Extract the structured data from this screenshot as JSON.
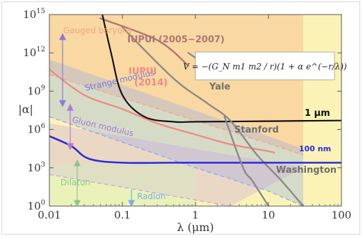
{
  "chart_data": {
    "type": "line",
    "xlabel": "λ (μm)",
    "ylabel": "|α|",
    "xscale": "log",
    "yscale": "log",
    "xlim": [
      0.01,
      100
    ],
    "ylim": [
      1,
      1000000000000000.0
    ],
    "grid": false,
    "x_ticks": [
      "0.01",
      "0.1",
      "1",
      "10",
      "100"
    ],
    "y_ticks": [
      {
        "base": "10",
        "exp": "0"
      },
      {
        "base": "10",
        "exp": "3"
      },
      {
        "base": "10",
        "exp": "6"
      },
      {
        "base": "10",
        "exp": "9"
      },
      {
        "base": "10",
        "exp": "12"
      },
      {
        "base": "10",
        "exp": "15"
      }
    ],
    "formula": "V = −(G_N m1 m2 / r)(1 + α e^(−r/λ))",
    "excluded_region_color": "#fbf3b5",
    "regions": [
      {
        "label": "Gauged baryons",
        "color": "#f7a07a",
        "lower": [
          [
            0.01,
            20000000000.0
          ],
          [
            0.1,
            300000000.0
          ],
          [
            1,
            5000000.0
          ],
          [
            10,
            80000.0
          ],
          [
            30,
            10000.0
          ]
        ],
        "upper": [
          [
            0.01,
            1000000000000000.0
          ],
          [
            30,
            1000000000000000.0
          ]
        ]
      },
      {
        "label": "Strange modulus",
        "color": "#8aa8f0",
        "lower": [
          [
            0.01,
            10000000.0
          ],
          [
            0.1,
            100000.0
          ],
          [
            1,
            1000.0
          ],
          [
            10,
            15
          ],
          [
            30,
            1
          ]
        ],
        "upper": [
          [
            0.01,
            300000000000.0
          ],
          [
            0.1,
            3000000000.0
          ],
          [
            1,
            30000000.0
          ],
          [
            10,
            300000.0
          ],
          [
            30,
            30000.0
          ]
        ]
      },
      {
        "label": "Gluon modulus",
        "color": "#c7a0e6",
        "lower": [
          [
            0.01,
            300.0
          ],
          [
            0.1,
            30
          ],
          [
            1,
            3
          ],
          [
            3,
            1
          ]
        ],
        "upper": [
          [
            0.01,
            3000000.0
          ],
          [
            0.1,
            300000.0
          ],
          [
            1,
            30000.0
          ],
          [
            10,
            3000.0
          ],
          [
            30,
            1000.0
          ]
        ]
      },
      {
        "label": "Dilaton",
        "color": "#c6eec4",
        "lower": [
          [
            0.01,
            1
          ],
          [
            1,
            1
          ]
        ],
        "upper": [
          [
            0.01,
            2000.0
          ],
          [
            1,
            2000.0
          ]
        ]
      }
    ],
    "annotations": [
      "Gauged baryons",
      "Strange modulus",
      "Gluon modulus",
      "Dilaton",
      "Radion"
    ],
    "series": [
      {
        "name": "IUPUI (2005–2007)",
        "color": "#b07575",
        "points": [
          [
            0.05,
            500000000000000.0
          ],
          [
            0.3,
            10000000000000.0
          ],
          [
            0.8,
            100000000000.0
          ]
        ]
      },
      {
        "name": "IUPUI (2014)",
        "color": "#f08a84",
        "points": [
          [
            0.01,
            50000000000.0
          ],
          [
            0.03,
            500000000.0
          ],
          [
            0.1,
            40000000.0
          ],
          [
            0.3,
            3000000.0
          ],
          [
            1,
            400000.0
          ],
          [
            3,
            70000.0
          ],
          [
            10,
            20000.0
          ],
          [
            12,
            15000.0
          ]
        ]
      },
      {
        "name": "1 μm",
        "color": "#111111",
        "points": [
          [
            0.05,
            5000000000000000.0
          ],
          [
            0.07,
            1000000000000.0
          ],
          [
            0.1,
            500000000.0
          ],
          [
            0.2,
            10000000.0
          ],
          [
            0.5,
            4000000.0
          ],
          [
            1,
            4000000.0
          ],
          [
            10,
            4500000.0
          ],
          [
            100,
            5000000.0
          ]
        ]
      },
      {
        "name": "Yale",
        "color": "#8a8a8a",
        "points": [
          [
            0.8,
            1000000000000.0
          ],
          [
            2.5,
            10000000000.0
          ]
        ]
      },
      {
        "name": "Stanford",
        "color": "#8a8a8a",
        "points": [
          [
            0.1,
            100000000000000.0
          ],
          [
            0.5,
            10000000000.0
          ],
          [
            1.5,
            100000000.0
          ],
          [
            3,
            5000000.0
          ],
          [
            7,
            10000.0
          ],
          [
            15,
            100.0
          ],
          [
            30,
            1
          ]
        ]
      },
      {
        "name": "100 nm",
        "color": "#2a2ad8",
        "points": [
          [
            0.01,
            300000.0
          ],
          [
            0.02,
            50000.0
          ],
          [
            0.035,
            5000.0
          ],
          [
            0.1,
            2500.0
          ],
          [
            0.5,
            2500.0
          ],
          [
            10,
            2500.0
          ],
          [
            100,
            2500.0
          ]
        ]
      },
      {
        "name": "Washington",
        "color": "#8a8a8a",
        "points": [
          [
            2.5,
            10000000.0
          ],
          [
            4.5,
            1000.0
          ],
          [
            6,
            100.0
          ],
          [
            10,
            1
          ]
        ]
      }
    ],
    "series_labels": [
      {
        "name": "IUPUI (2005–2007)",
        "text": "IUPUI (2005−2007)",
        "color": "#b07575"
      },
      {
        "name": "IUPUI (2014)",
        "text": "IUPUI",
        "line2": "(2014)",
        "color": "#f08a84"
      },
      {
        "name": "Yale",
        "text": "Yale",
        "color": "#6f6f6f"
      },
      {
        "name": "Stanford",
        "text": "Stanford",
        "color": "#6f6f6f"
      },
      {
        "name": "Washington",
        "text": "Washington",
        "color": "#6f6f6f"
      },
      {
        "name": "1 μm",
        "text": "1 μm",
        "color": "#111111"
      },
      {
        "name": "100 nm",
        "text": "100 nm",
        "color": "#2a2ad8"
      }
    ]
  }
}
